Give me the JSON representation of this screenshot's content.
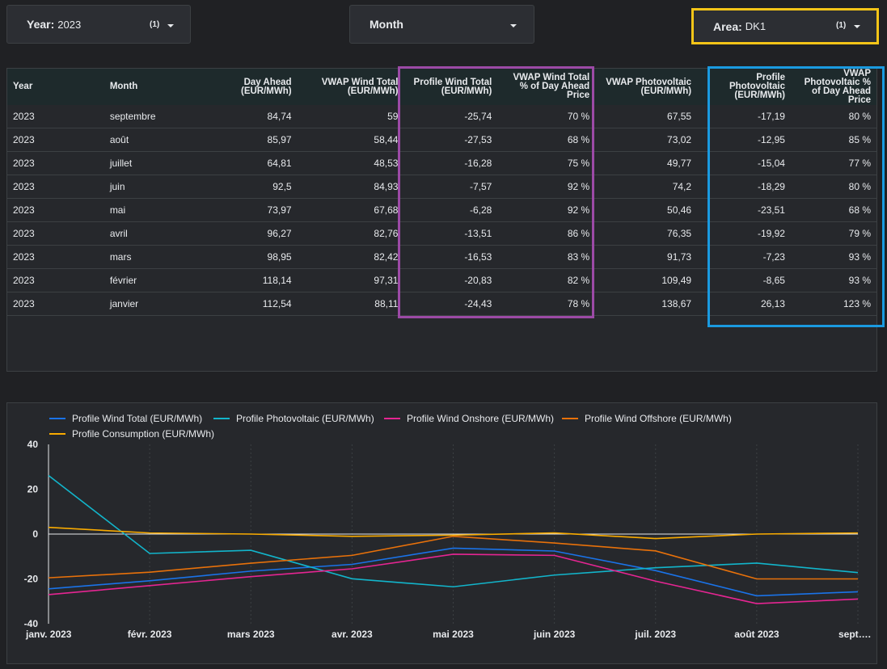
{
  "filters": {
    "year": {
      "label": "Year:",
      "value": "2023",
      "count": "(1)"
    },
    "month": {
      "label": "Month"
    },
    "area": {
      "label": "Area:",
      "value": "DK1",
      "count": "(1)"
    }
  },
  "table": {
    "headers": [
      "Year",
      "Month",
      "Day Ahead (EUR/MWh)",
      "VWAP Wind Total (EUR/MWh)",
      "Profile Wind Total (EUR/MWh)",
      "VWAP Wind Total % of Day Ahead Price",
      "VWAP Photovoltaic (EUR/MWh)",
      "Profile Photovoltaic (EUR/MWh)",
      "VWAP Photovoltaic % of Day Ahead Price"
    ],
    "rows": [
      [
        "2023",
        "septembre",
        "84,74",
        "59",
        "-25,74",
        "70 %",
        "67,55",
        "-17,19",
        "80 %"
      ],
      [
        "2023",
        "août",
        "85,97",
        "58,44",
        "-27,53",
        "68 %",
        "73,02",
        "-12,95",
        "85 %"
      ],
      [
        "2023",
        "juillet",
        "64,81",
        "48,53",
        "-16,28",
        "75 %",
        "49,77",
        "-15,04",
        "77 %"
      ],
      [
        "2023",
        "juin",
        "92,5",
        "84,93",
        "-7,57",
        "92 %",
        "74,2",
        "-18,29",
        "80 %"
      ],
      [
        "2023",
        "mai",
        "73,97",
        "67,68",
        "-6,28",
        "92 %",
        "50,46",
        "-23,51",
        "68 %"
      ],
      [
        "2023",
        "avril",
        "96,27",
        "82,76",
        "-13,51",
        "86 %",
        "76,35",
        "-19,92",
        "79 %"
      ],
      [
        "2023",
        "mars",
        "98,95",
        "82,42",
        "-16,53",
        "83 %",
        "91,73",
        "-7,23",
        "93 %"
      ],
      [
        "2023",
        "février",
        "118,14",
        "97,31",
        "-20,83",
        "82 %",
        "109,49",
        "-8,65",
        "93 %"
      ],
      [
        "2023",
        "janvier",
        "112,54",
        "88,11",
        "-24,43",
        "78 %",
        "138,67",
        "26,13",
        "123 %"
      ]
    ]
  },
  "colors": {
    "highlight_area": "#f5c518",
    "highlight_wind": "#9c4aa6",
    "highlight_pv": "#1a9ae0"
  },
  "chart_data": {
    "type": "line",
    "categories": [
      "janv. 2023",
      "févr. 2023",
      "mars 2023",
      "avr. 2023",
      "mai 2023",
      "juin 2023",
      "juil. 2023",
      "août 2023",
      "sept. 2023"
    ],
    "x_tick_labels": [
      "janv. 2023",
      "févr. 2023",
      "mars 2023",
      "avr. 2023",
      "mai 2023",
      "juin 2023",
      "juil. 2023",
      "août 2023",
      "sept…."
    ],
    "ylim": [
      -40,
      40
    ],
    "yticks": [
      40,
      20,
      0,
      -20,
      -40
    ],
    "legend_position": "top-left",
    "series": [
      {
        "name": "Profile Wind Total (EUR/MWh)",
        "color": "#1a73e8",
        "values": [
          -24.43,
          -20.83,
          -16.53,
          -13.51,
          -6.28,
          -7.57,
          -16.28,
          -27.53,
          -25.74
        ]
      },
      {
        "name": "Profile Photovoltaic (EUR/MWh)",
        "color": "#12b5cb",
        "values": [
          26.13,
          -8.65,
          -7.23,
          -19.92,
          -23.51,
          -18.29,
          -15.04,
          -12.95,
          -17.19
        ]
      },
      {
        "name": "Profile Wind Onshore (EUR/MWh)",
        "color": "#e52592",
        "values": [
          -27,
          -23,
          -19,
          -15.5,
          -9,
          -9.5,
          -21,
          -31,
          -29
        ]
      },
      {
        "name": "Profile Wind Offshore (EUR/MWh)",
        "color": "#e8710a",
        "values": [
          -19.5,
          -17,
          -13,
          -9.5,
          -1,
          -4,
          -7.5,
          -20,
          -20
        ]
      },
      {
        "name": "Profile Consumption (EUR/MWh)",
        "color": "#f9ab00",
        "values": [
          3,
          0.5,
          0,
          -1,
          -0.5,
          0.5,
          -2,
          0,
          0.5
        ]
      }
    ]
  }
}
